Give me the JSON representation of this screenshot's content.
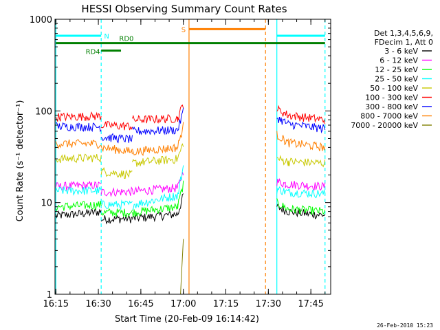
{
  "chart_data": {
    "type": "line",
    "title": "HESSI Observing Summary Count Rates",
    "xlabel": "Start Time (20-Feb-09 16:14:42)",
    "ylabel": "Count Rate (s⁻¹ detector⁻¹)",
    "y_scale": "log",
    "ylim": [
      1,
      1000
    ],
    "y_ticks": [
      1,
      10,
      100,
      1000
    ],
    "y_tick_labels": [
      "1",
      "10",
      "100",
      "1000"
    ],
    "x_range_minutes": [
      16.0,
      16.5
    ],
    "x_tick_labels": [
      "16:15",
      "16:30",
      "16:45",
      "17:00",
      "17:15",
      "17:30",
      "17:45"
    ],
    "x_ticks": [
      "16:15",
      "16:30",
      "16:45",
      "17:00",
      "17:15",
      "17:30",
      "17:45"
    ],
    "legend_header": [
      "Det 1,3,4,5,6,9,",
      "FDecim 1, Att 0"
    ],
    "series": [
      {
        "name": "3 - 6 keV",
        "color": "#000000",
        "segments": [
          {
            "t": [
              "16:15",
              "16:25",
              "16:31"
            ],
            "y": [
              7.2,
              7.6,
              8.0
            ]
          },
          {
            "t": [
              "16:31",
              "16:42"
            ],
            "y": [
              6.6,
              6.7
            ]
          },
          {
            "t": [
              "16:42",
              "16:58",
              "17:00"
            ],
            "y": [
              6.7,
              7.5,
              12
            ]
          },
          {
            "t": [
              "17:33",
              "17:37",
              "17:45",
              "17:50"
            ],
            "y": [
              9,
              8,
              7.5,
              7.3
            ]
          }
        ]
      },
      {
        "name": "6 - 12 keV",
        "color": "#ff00ff",
        "segments": [
          {
            "t": [
              "16:15",
              "16:31"
            ],
            "y": [
              15,
              15.5
            ]
          },
          {
            "t": [
              "16:31",
              "16:42"
            ],
            "y": [
              13,
              13.2
            ]
          },
          {
            "t": [
              "16:42",
              "16:58",
              "17:00"
            ],
            "y": [
              13.2,
              14.5,
              22
            ]
          },
          {
            "t": [
              "17:33",
              "17:36",
              "17:50"
            ],
            "y": [
              17,
              16,
              15
            ]
          }
        ]
      },
      {
        "name": "12 - 25 keV",
        "color": "#00ff00",
        "segments": [
          {
            "t": [
              "16:15",
              "16:31"
            ],
            "y": [
              9,
              9.5
            ]
          },
          {
            "t": [
              "16:31",
              "16:42"
            ],
            "y": [
              7.8,
              7.8
            ]
          },
          {
            "t": [
              "16:42",
              "16:58",
              "17:00"
            ],
            "y": [
              7.8,
              9,
              16
            ]
          },
          {
            "t": [
              "17:33",
              "17:37",
              "17:50"
            ],
            "y": [
              10,
              8.5,
              8
            ]
          }
        ]
      },
      {
        "name": "25 - 50 keV",
        "color": "#00ffff",
        "segments": [
          {
            "t": [
              "16:15",
              "16:31"
            ],
            "y": [
              13.5,
              13.5
            ]
          },
          {
            "t": [
              "16:31",
              "16:42"
            ],
            "y": [
              9.5,
              9.5
            ]
          },
          {
            "t": [
              "16:42",
              "16:58",
              "17:00"
            ],
            "y": [
              9.5,
              12,
              25
            ]
          },
          {
            "t": [
              "17:33",
              "17:37",
              "17:50"
            ],
            "y": [
              14,
              13,
              12.5
            ]
          }
        ]
      },
      {
        "name": "50 - 100 keV",
        "color": "#c8c800",
        "segments": [
          {
            "t": [
              "16:15",
              "16:31"
            ],
            "y": [
              30,
              31
            ]
          },
          {
            "t": [
              "16:31",
              "16:42"
            ],
            "y": [
              22,
              20
            ]
          },
          {
            "t": [
              "16:42",
              "16:58",
              "17:00"
            ],
            "y": [
              27,
              30,
              45
            ]
          },
          {
            "t": [
              "17:33",
              "17:37",
              "17:50"
            ],
            "y": [
              30,
              28,
              27
            ]
          }
        ]
      },
      {
        "name": "100 - 300 keV",
        "color": "#ff0000",
        "segments": [
          {
            "t": [
              "16:15",
              "16:31"
            ],
            "y": [
              86,
              88
            ]
          },
          {
            "t": [
              "16:31",
              "16:42"
            ],
            "y": [
              70,
              68
            ]
          },
          {
            "t": [
              "16:42",
              "16:58",
              "17:00"
            ],
            "y": [
              80,
              83,
              120
            ]
          },
          {
            "t": [
              "17:33",
              "17:37",
              "17:50"
            ],
            "y": [
              105,
              90,
              80
            ]
          }
        ]
      },
      {
        "name": "300 - 800 keV",
        "color": "#0000ff",
        "segments": [
          {
            "t": [
              "16:15",
              "16:31"
            ],
            "y": [
              68,
              67
            ]
          },
          {
            "t": [
              "16:31",
              "16:42"
            ],
            "y": [
              52,
              49
            ]
          },
          {
            "t": [
              "16:42",
              "16:58",
              "17:00"
            ],
            "y": [
              60,
              62,
              100
            ]
          },
          {
            "t": [
              "17:33",
              "17:37",
              "17:50"
            ],
            "y": [
              85,
              72,
              64
            ]
          }
        ]
      },
      {
        "name": "800 - 7000 keV",
        "color": "#ff7f00",
        "segments": [
          {
            "t": [
              "16:15",
              "16:31"
            ],
            "y": [
              44,
              44
            ]
          },
          {
            "t": [
              "16:31",
              "16:42"
            ],
            "y": [
              40,
              36
            ]
          },
          {
            "t": [
              "16:42",
              "16:58",
              "17:00"
            ],
            "y": [
              36,
              40,
              70
            ]
          },
          {
            "t": [
              "17:33",
              "17:37",
              "17:50"
            ],
            "y": [
              55,
              45,
              40
            ]
          }
        ]
      },
      {
        "name": "7000 - 20000 keV",
        "color": "#7f7f00",
        "segments": [
          {
            "t": [
              "16:59",
              "17:00"
            ],
            "y": [
              1,
              4
            ]
          }
        ]
      }
    ],
    "annotations": {
      "N_label": "N",
      "RD0_label": "RD0",
      "RD4_label": "RD4",
      "S_label": "S",
      "lines": [
        {
          "kind": "solid",
          "color": "#00ffff",
          "t": "16:15"
        },
        {
          "kind": "dashed",
          "color": "#00ffff",
          "t": "16:31"
        },
        {
          "kind": "solid",
          "color": "#00ffff",
          "t": "17:33"
        },
        {
          "kind": "dashed",
          "color": "#00ffff",
          "t": "17:50"
        },
        {
          "kind": "solid",
          "color": "#ff7f00",
          "t": "17:02"
        },
        {
          "kind": "dashed",
          "color": "#ff7f00",
          "t": "17:29"
        }
      ],
      "bars": [
        {
          "name": "N",
          "color": "#00ffff",
          "y": 660,
          "t": [
            [
              "16:15",
              "16:31"
            ],
            [
              "17:33",
              "17:50"
            ]
          ]
        },
        {
          "name": "RD0",
          "color": "#007f00",
          "y": 550,
          "t": [
            [
              "16:15",
              "17:50"
            ]
          ]
        },
        {
          "name": "RD4",
          "color": "#007f00",
          "y": 455,
          "t": [
            [
              "16:31",
              "16:38"
            ]
          ]
        },
        {
          "name": "S",
          "color": "#ff7f00",
          "y": 780,
          "t": [
            [
              "17:02",
              "17:29"
            ]
          ]
        }
      ]
    }
  },
  "footer": {
    "timestamp": "26-Feb-2010 15:23"
  }
}
